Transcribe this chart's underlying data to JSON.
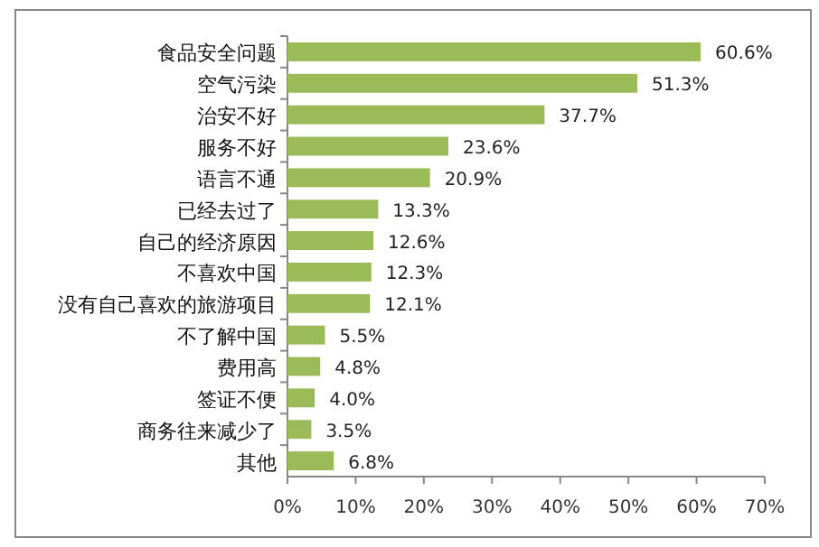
{
  "chart_data": {
    "type": "bar",
    "orientation": "horizontal",
    "categories": [
      "食品安全问题",
      "空气污染",
      "治安不好",
      "服务不好",
      "语言不通",
      "已经去过了",
      "自己的经济原因",
      "不喜欢中国",
      "没有自己喜欢的旅游项目",
      "不了解中国",
      "费用高",
      "签证不便",
      "商务往来减少了",
      "其他"
    ],
    "values": [
      60.6,
      51.3,
      37.7,
      23.6,
      20.9,
      13.3,
      12.6,
      12.3,
      12.1,
      5.5,
      4.8,
      4.0,
      3.5,
      6.8
    ],
    "value_labels": [
      "60.6%",
      "51.3%",
      "37.7%",
      "23.6%",
      "20.9%",
      "13.3%",
      "12.6%",
      "12.3%",
      "12.1%",
      "5.5%",
      "4.8%",
      "4.0%",
      "3.5%",
      "6.8%"
    ],
    "color": "#9bbb59",
    "xlim": [
      0,
      70
    ],
    "xticks": [
      {
        "value": 0,
        "label": "0%"
      },
      {
        "value": 10,
        "label": "10%"
      },
      {
        "value": 20,
        "label": "20%"
      },
      {
        "value": 30,
        "label": "30%"
      },
      {
        "value": 40,
        "label": "40%"
      },
      {
        "value": 50,
        "label": "50%"
      },
      {
        "value": 60,
        "label": "60%"
      },
      {
        "value": 70,
        "label": "70%"
      }
    ],
    "grid": false
  }
}
